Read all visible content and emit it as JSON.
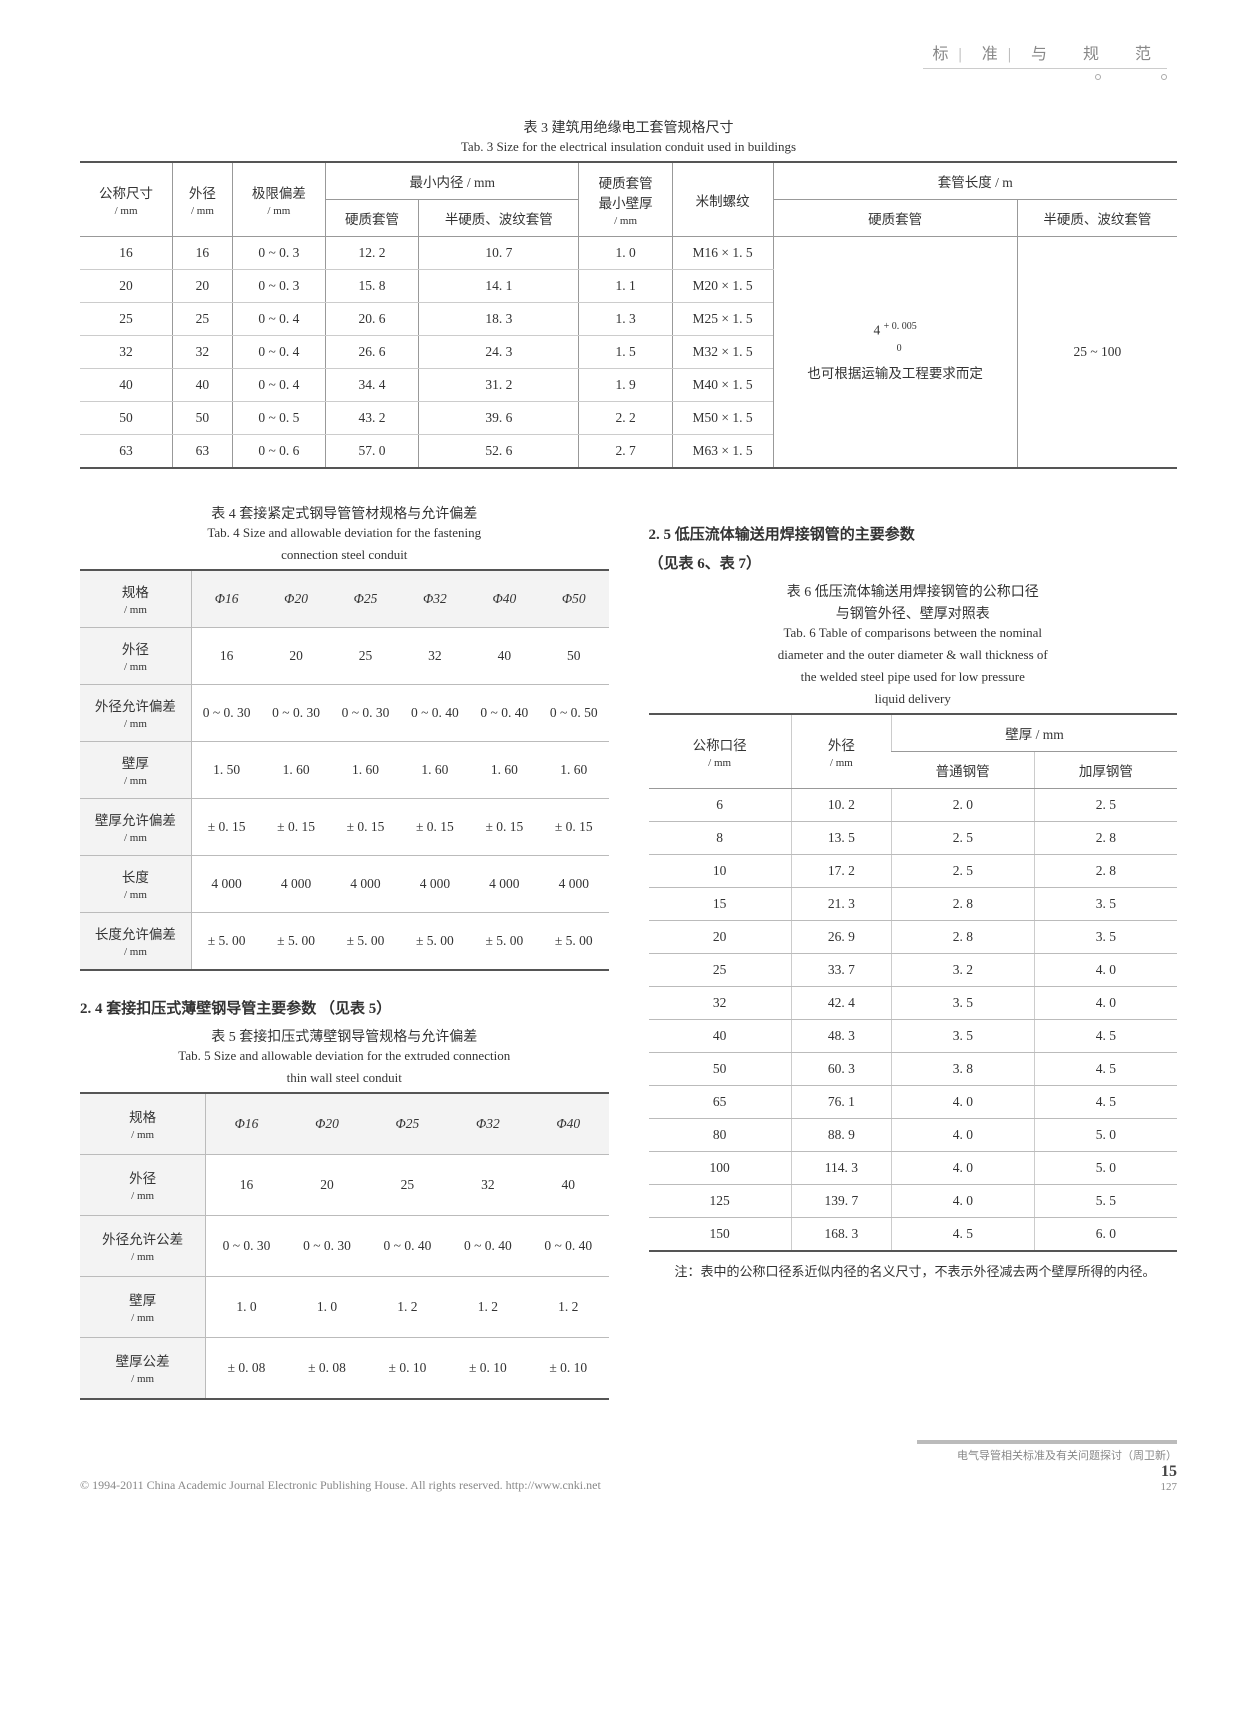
{
  "header": {
    "t1": "标",
    "t2": "准",
    "t3": "与",
    "t4": "规",
    "t5": "范"
  },
  "tab3": {
    "cap_cn": "表 3   建筑用绝缘电工套管规格尺寸",
    "cap_en": "Tab. 3   Size for the electrical insulation conduit used in buildings",
    "head": {
      "h1": "公称尺寸",
      "h1b": "/ mm",
      "h2": "外径",
      "h2b": "/ mm",
      "h3": "极限偏差",
      "h3b": "/ mm",
      "h4": "最小内径 / mm",
      "h4a": "硬质套管",
      "h4b": "半硬质、波纹套管",
      "h5": "硬质套管",
      "h5a": "最小壁厚",
      "h5b": "/ mm",
      "h6": "米制螺纹",
      "h7": "套管长度 / m",
      "h7a": "硬质套管",
      "h7b": "半硬质、波纹套管"
    },
    "rows": [
      {
        "a": "16",
        "b": "16",
        "c": "0 ~ 0. 3",
        "d": "12. 2",
        "e": "10. 7",
        "f": "1. 0",
        "g": "M16 × 1. 5"
      },
      {
        "a": "20",
        "b": "20",
        "c": "0 ~ 0. 3",
        "d": "15. 8",
        "e": "14. 1",
        "f": "1. 1",
        "g": "M20 × 1. 5"
      },
      {
        "a": "25",
        "b": "25",
        "c": "0 ~ 0. 4",
        "d": "20. 6",
        "e": "18. 3",
        "f": "1. 3",
        "g": "M25 × 1. 5"
      },
      {
        "a": "32",
        "b": "32",
        "c": "0 ~ 0. 4",
        "d": "26. 6",
        "e": "24. 3",
        "f": "1. 5",
        "g": "M32 × 1. 5"
      },
      {
        "a": "40",
        "b": "40",
        "c": "0 ~ 0. 4",
        "d": "34. 4",
        "e": "31. 2",
        "f": "1. 9",
        "g": "M40 × 1. 5"
      },
      {
        "a": "50",
        "b": "50",
        "c": "0 ~ 0. 5",
        "d": "43. 2",
        "e": "39. 6",
        "f": "2. 2",
        "g": "M50 × 1. 5"
      },
      {
        "a": "63",
        "b": "63",
        "c": "0 ~ 0. 6",
        "d": "57. 0",
        "e": "52. 6",
        "f": "2. 7",
        "g": "M63 × 1. 5"
      }
    ],
    "merge_left_a": "4 ",
    "merge_left_b": "+ 0. 005",
    "merge_left_c": "0",
    "merge_left2": "也可根据运输及工程要求而定",
    "merge_right": "25 ~ 100"
  },
  "tab4": {
    "cap_cn": "表 4   套接紧定式钢导管管材规格与允许偏差",
    "cap_en1": "Tab. 4   Size and allowable deviation for the fastening",
    "cap_en2": "connection steel conduit",
    "cols": [
      "Φ16",
      "Φ20",
      "Φ25",
      "Φ32",
      "Φ40",
      "Φ50"
    ],
    "rows": [
      {
        "h": "规格",
        "hb": "/ mm",
        "v": [
          "Φ16",
          "Φ20",
          "Φ25",
          "Φ32",
          "Φ40",
          "Φ50"
        ],
        "isHead": true
      },
      {
        "h": "外径",
        "hb": "/ mm",
        "v": [
          "16",
          "20",
          "25",
          "32",
          "40",
          "50"
        ]
      },
      {
        "h": "外径允许偏差",
        "hb": "/ mm",
        "v": [
          "0 ~ 0. 30",
          "0 ~ 0. 30",
          "0 ~ 0. 30",
          "0 ~ 0. 40",
          "0 ~ 0. 40",
          "0 ~ 0. 50"
        ]
      },
      {
        "h": "壁厚",
        "hb": "/ mm",
        "v": [
          "1. 50",
          "1. 60",
          "1. 60",
          "1. 60",
          "1. 60",
          "1. 60"
        ]
      },
      {
        "h": "壁厚允许偏差",
        "hb": "/ mm",
        "v": [
          "± 0. 15",
          "± 0. 15",
          "± 0. 15",
          "± 0. 15",
          "± 0. 15",
          "± 0. 15"
        ]
      },
      {
        "h": "长度",
        "hb": "/ mm",
        "v": [
          "4 000",
          "4 000",
          "4 000",
          "4 000",
          "4 000",
          "4 000"
        ]
      },
      {
        "h": "长度允许偏差",
        "hb": "/ mm",
        "v": [
          "± 5. 00",
          "± 5. 00",
          "± 5. 00",
          "± 5. 00",
          "± 5. 00",
          "± 5. 00"
        ]
      }
    ]
  },
  "sec24": "2. 4   套接扣压式薄壁钢导管主要参数 （见表 5）",
  "tab5": {
    "cap_cn": "表 5   套接扣压式薄壁钢导管规格与允许偏差",
    "cap_en1": "Tab. 5   Size and allowable deviation for the extruded connection",
    "cap_en2": "thin wall steel conduit",
    "rows": [
      {
        "h": "规格",
        "hb": "/ mm",
        "v": [
          "Φ16",
          "Φ20",
          "Φ25",
          "Φ32",
          "Φ40"
        ],
        "isHead": true
      },
      {
        "h": "外径",
        "hb": "/ mm",
        "v": [
          "16",
          "20",
          "25",
          "32",
          "40"
        ]
      },
      {
        "h": "外径允许公差",
        "hb": "/ mm",
        "v": [
          "0 ~ 0. 30",
          "0 ~ 0. 30",
          "0 ~ 0. 40",
          "0 ~ 0. 40",
          "0 ~ 0. 40"
        ]
      },
      {
        "h": "壁厚",
        "hb": "/ mm",
        "v": [
          "1. 0",
          "1. 0",
          "1. 2",
          "1. 2",
          "1. 2"
        ]
      },
      {
        "h": "壁厚公差",
        "hb": "/ mm",
        "v": [
          "± 0. 08",
          "± 0. 08",
          "± 0. 10",
          "± 0. 10",
          "± 0. 10"
        ]
      }
    ]
  },
  "sec25a": "2. 5   低压流体输送用焊接钢管的主要参数",
  "sec25b": "（见表 6、表 7）",
  "tab6": {
    "cap_cn1": "表 6   低压流体输送用焊接钢管的公称口径",
    "cap_cn2": "与钢管外径、壁厚对照表",
    "cap_en1": "Tab. 6   Table of comparisons between the nominal",
    "cap_en2": "diameter and the outer diameter & wall thickness of",
    "cap_en3": "the welded steel pipe used for low pressure",
    "cap_en4": "liquid delivery",
    "head": {
      "h1": "公称口径",
      "h1b": "/ mm",
      "h2": "外径",
      "h2b": "/ mm",
      "h3": "壁厚 / mm",
      "h3a": "普通钢管",
      "h3b": "加厚钢管"
    },
    "rows": [
      {
        "a": "6",
        "b": "10. 2",
        "c": "2. 0",
        "d": "2. 5"
      },
      {
        "a": "8",
        "b": "13. 5",
        "c": "2. 5",
        "d": "2. 8"
      },
      {
        "a": "10",
        "b": "17. 2",
        "c": "2. 5",
        "d": "2. 8"
      },
      {
        "a": "15",
        "b": "21. 3",
        "c": "2. 8",
        "d": "3. 5"
      },
      {
        "a": "20",
        "b": "26. 9",
        "c": "2. 8",
        "d": "3. 5"
      },
      {
        "a": "25",
        "b": "33. 7",
        "c": "3. 2",
        "d": "4. 0"
      },
      {
        "a": "32",
        "b": "42. 4",
        "c": "3. 5",
        "d": "4. 0"
      },
      {
        "a": "40",
        "b": "48. 3",
        "c": "3. 5",
        "d": "4. 5"
      },
      {
        "a": "50",
        "b": "60. 3",
        "c": "3. 8",
        "d": "4. 5"
      },
      {
        "a": "65",
        "b": "76. 1",
        "c": "4. 0",
        "d": "4. 5"
      },
      {
        "a": "80",
        "b": "88. 9",
        "c": "4. 0",
        "d": "5. 0"
      },
      {
        "a": "100",
        "b": "114. 3",
        "c": "4. 0",
        "d": "5. 0"
      },
      {
        "a": "125",
        "b": "139. 7",
        "c": "4. 0",
        "d": "5. 5"
      },
      {
        "a": "150",
        "b": "168. 3",
        "c": "4. 5",
        "d": "6. 0"
      }
    ],
    "note": "注：表中的公称口径系近似内径的名义尺寸，不表示外径减去两个壁厚所得的内径。"
  },
  "footer": {
    "left": "© 1994-2011 China Academic Journal Electronic Publishing House. All rights reserved.    http://www.cnki.net",
    "right_title": "电气导管相关标准及有关问题探讨（周卫新）",
    "page": "15",
    "sub": "127"
  }
}
